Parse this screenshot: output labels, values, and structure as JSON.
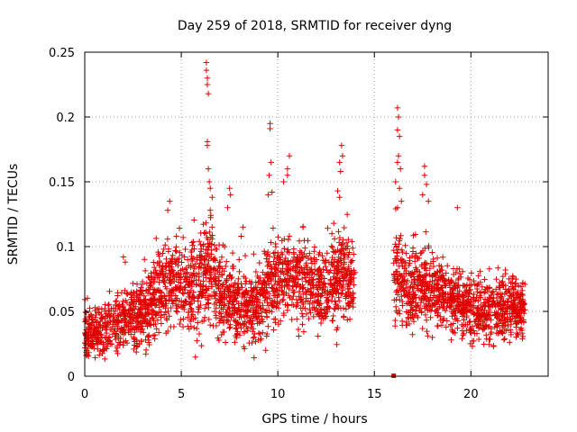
{
  "chart_data": {
    "type": "scatter",
    "title": "Day 259 of 2018, SRMTID for receiver dyng",
    "xlabel": "GPS time / hours",
    "ylabel": "SRMTID / TECUs",
    "xlim": [
      0,
      24
    ],
    "ylim": [
      0,
      0.25
    ],
    "xticks": [
      0,
      5,
      10,
      15,
      20
    ],
    "xtick_labels": [
      "0",
      "5",
      "10",
      "15",
      "20"
    ],
    "yticks": [
      0,
      0.05,
      0.1,
      0.15,
      0.2,
      0.25
    ],
    "ytick_labels": [
      "0",
      "0.05",
      "0.1",
      "0.15",
      "0.2",
      "0.25"
    ],
    "grid": true,
    "marker": "+",
    "color": "#e00000",
    "series": [
      {
        "name": "SRMTID",
        "segments": [
          {
            "x_start": 0.0,
            "x_end": 13.95,
            "envelope": [
              [
                0.0,
                0.035,
                0.028
              ],
              [
                0.5,
                0.032,
                0.022
              ],
              [
                1.0,
                0.036,
                0.024
              ],
              [
                1.5,
                0.04,
                0.026
              ],
              [
                2.0,
                0.045,
                0.028
              ],
              [
                2.5,
                0.047,
                0.03
              ],
              [
                3.0,
                0.05,
                0.032
              ],
              [
                3.5,
                0.058,
                0.035
              ],
              [
                4.0,
                0.068,
                0.04
              ],
              [
                4.5,
                0.072,
                0.04
              ],
              [
                5.0,
                0.07,
                0.038
              ],
              [
                5.5,
                0.068,
                0.038
              ],
              [
                6.0,
                0.072,
                0.045
              ],
              [
                6.5,
                0.085,
                0.05
              ],
              [
                7.0,
                0.062,
                0.036
              ],
              [
                7.5,
                0.06,
                0.036
              ],
              [
                8.0,
                0.052,
                0.034
              ],
              [
                8.5,
                0.055,
                0.034
              ],
              [
                9.0,
                0.058,
                0.035
              ],
              [
                9.5,
                0.068,
                0.04
              ],
              [
                10.0,
                0.078,
                0.042
              ],
              [
                10.5,
                0.08,
                0.042
              ],
              [
                11.0,
                0.076,
                0.04
              ],
              [
                11.5,
                0.072,
                0.036
              ],
              [
                12.0,
                0.07,
                0.035
              ],
              [
                12.5,
                0.068,
                0.035
              ],
              [
                13.0,
                0.075,
                0.04
              ],
              [
                13.5,
                0.078,
                0.04
              ],
              [
                13.95,
                0.072,
                0.036
              ]
            ]
          },
          {
            "x_start": 16.0,
            "x_end": 22.8,
            "envelope": [
              [
                16.0,
                0.085,
                0.045
              ],
              [
                16.5,
                0.072,
                0.04
              ],
              [
                17.0,
                0.068,
                0.038
              ],
              [
                17.5,
                0.07,
                0.038
              ],
              [
                18.0,
                0.068,
                0.036
              ],
              [
                18.5,
                0.064,
                0.034
              ],
              [
                19.0,
                0.06,
                0.032
              ],
              [
                19.5,
                0.058,
                0.03
              ],
              [
                20.0,
                0.055,
                0.03
              ],
              [
                20.5,
                0.052,
                0.028
              ],
              [
                21.0,
                0.05,
                0.028
              ],
              [
                21.5,
                0.052,
                0.026
              ],
              [
                22.0,
                0.055,
                0.028
              ],
              [
                22.8,
                0.052,
                0.028
              ]
            ]
          }
        ],
        "spikes": [
          [
            6.3,
            0.242
          ],
          [
            6.3,
            0.236
          ],
          [
            6.35,
            0.23
          ],
          [
            6.35,
            0.225
          ],
          [
            6.4,
            0.218
          ],
          [
            6.35,
            0.181
          ],
          [
            6.35,
            0.178
          ],
          [
            6.4,
            0.16
          ],
          [
            6.45,
            0.15
          ],
          [
            6.5,
            0.145
          ],
          [
            6.6,
            0.138
          ],
          [
            6.5,
            0.128
          ],
          [
            9.6,
            0.195
          ],
          [
            9.6,
            0.191
          ],
          [
            9.65,
            0.165
          ],
          [
            9.55,
            0.155
          ],
          [
            9.7,
            0.142
          ],
          [
            9.5,
            0.14
          ],
          [
            10.6,
            0.17
          ],
          [
            10.5,
            0.16
          ],
          [
            10.5,
            0.155
          ],
          [
            10.3,
            0.15
          ],
          [
            13.3,
            0.178
          ],
          [
            13.35,
            0.17
          ],
          [
            13.2,
            0.165
          ],
          [
            13.25,
            0.158
          ],
          [
            13.1,
            0.143
          ],
          [
            13.2,
            0.138
          ],
          [
            4.4,
            0.135
          ],
          [
            4.3,
            0.128
          ],
          [
            7.5,
            0.145
          ],
          [
            7.55,
            0.14
          ],
          [
            7.4,
            0.13
          ],
          [
            16.2,
            0.207
          ],
          [
            16.25,
            0.2
          ],
          [
            16.2,
            0.19
          ],
          [
            16.3,
            0.185
          ],
          [
            16.25,
            0.17
          ],
          [
            16.2,
            0.165
          ],
          [
            16.35,
            0.16
          ],
          [
            16.1,
            0.15
          ],
          [
            16.3,
            0.145
          ],
          [
            16.4,
            0.135
          ],
          [
            16.2,
            0.13
          ],
          [
            17.6,
            0.162
          ],
          [
            17.6,
            0.155
          ],
          [
            17.7,
            0.148
          ],
          [
            17.5,
            0.14
          ],
          [
            17.8,
            0.135
          ],
          [
            19.3,
            0.13
          ],
          [
            2.0,
            0.092
          ],
          [
            2.1,
            0.088
          ],
          [
            8.2,
            0.115
          ],
          [
            8.1,
            0.108
          ],
          [
            11.3,
            0.115
          ],
          [
            12.9,
            0.118
          ],
          [
            12.8,
            0.11
          ],
          [
            14.0,
            0.08
          ]
        ],
        "outliers": [
          [
            16.0,
            0.0
          ]
        ]
      }
    ]
  }
}
